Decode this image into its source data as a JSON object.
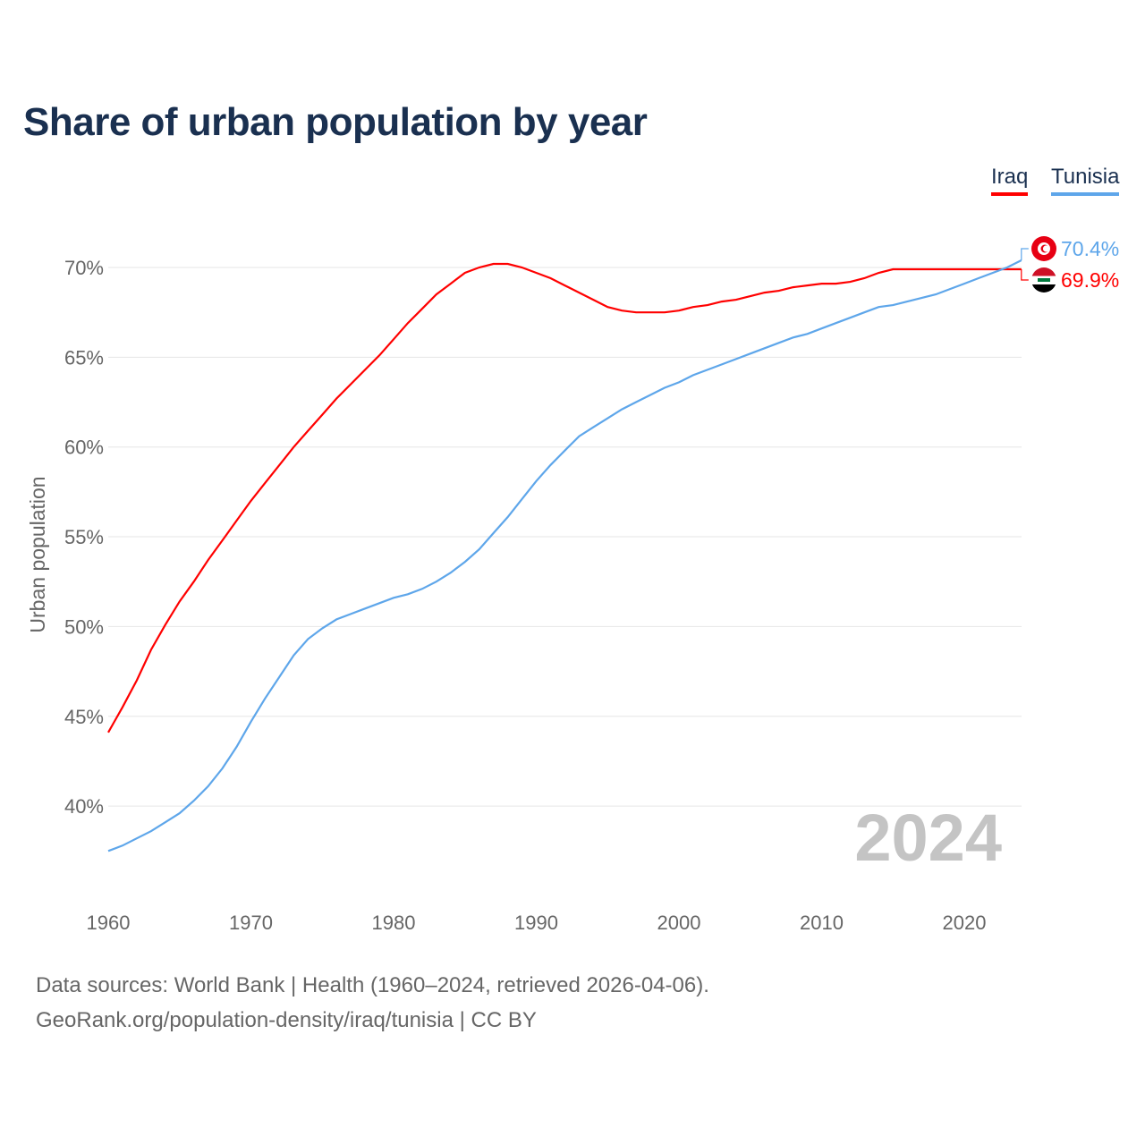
{
  "chart_data": {
    "type": "line",
    "title": "Share of urban population by year",
    "xlabel": "",
    "ylabel": "Urban population",
    "ylim": [
      35,
      72
    ],
    "xlim": [
      1960,
      2024
    ],
    "grid": true,
    "legend_placement": "top-right",
    "yticks": [
      40,
      45,
      50,
      55,
      60,
      65,
      70
    ],
    "ytick_labels": [
      "40%",
      "45%",
      "50%",
      "55%",
      "60%",
      "65%",
      "70%"
    ],
    "xticks": [
      1960,
      1970,
      1980,
      1990,
      2000,
      2010,
      2020
    ],
    "xtick_labels": [
      "1960",
      "1970",
      "1980",
      "1990",
      "2000",
      "2010",
      "2020"
    ],
    "year_watermark": "2024",
    "x_start": 1960,
    "series": [
      {
        "name": "Iraq",
        "color": "#ff0000",
        "end_label": "69.9%",
        "flag": "iraq-flag",
        "values": [
          44.1,
          45.5,
          47.0,
          48.7,
          50.1,
          51.4,
          52.5,
          53.7,
          54.8,
          55.9,
          57.0,
          58.0,
          59.0,
          60.0,
          60.9,
          61.8,
          62.7,
          63.5,
          64.3,
          65.1,
          66.0,
          66.9,
          67.7,
          68.5,
          69.1,
          69.7,
          70.0,
          70.2,
          70.2,
          70.0,
          69.7,
          69.4,
          69.0,
          68.6,
          68.2,
          67.8,
          67.6,
          67.5,
          67.5,
          67.5,
          67.6,
          67.8,
          67.9,
          68.1,
          68.2,
          68.4,
          68.6,
          68.7,
          68.9,
          69.0,
          69.1,
          69.1,
          69.2,
          69.4,
          69.7,
          69.9,
          69.9,
          69.9,
          69.9,
          69.9,
          69.9,
          69.9,
          69.9,
          69.9,
          69.9
        ]
      },
      {
        "name": "Tunisia",
        "color": "#5ea6ea",
        "end_label": "70.4%",
        "flag": "tunisia-flag",
        "values": [
          37.5,
          37.8,
          38.2,
          38.6,
          39.1,
          39.6,
          40.3,
          41.1,
          42.1,
          43.3,
          44.7,
          46.0,
          47.2,
          48.4,
          49.3,
          49.9,
          50.4,
          50.7,
          51.0,
          51.3,
          51.6,
          51.8,
          52.1,
          52.5,
          53.0,
          53.6,
          54.3,
          55.2,
          56.1,
          57.1,
          58.1,
          59.0,
          59.8,
          60.6,
          61.1,
          61.6,
          62.1,
          62.5,
          62.9,
          63.3,
          63.6,
          64.0,
          64.3,
          64.6,
          64.9,
          65.2,
          65.5,
          65.8,
          66.1,
          66.3,
          66.6,
          66.9,
          67.2,
          67.5,
          67.8,
          67.9,
          68.1,
          68.3,
          68.5,
          68.8,
          69.1,
          69.4,
          69.7,
          70.0,
          70.4
        ]
      }
    ]
  },
  "legend": {
    "iraq": "Iraq",
    "tunisia": "Tunisia"
  },
  "footer": {
    "line1": "Data sources: World Bank | Health (1960–2024, retrieved 2026-04-06).",
    "line2": "GeoRank.org/population-density/iraq/tunisia | CC BY"
  }
}
